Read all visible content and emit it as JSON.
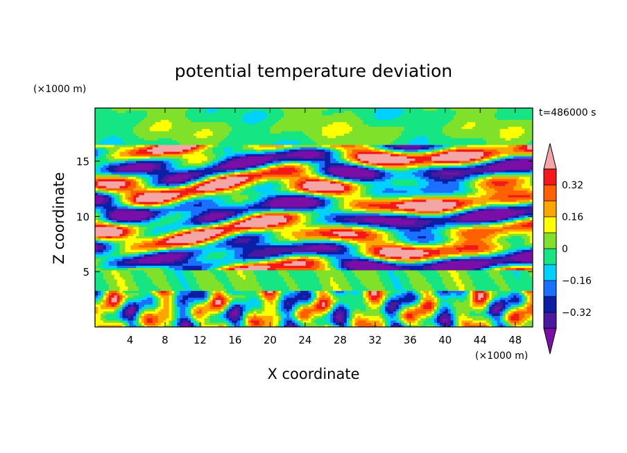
{
  "chart_data": {
    "type": "heatmap",
    "title": "potential temperature deviation",
    "xlabel": "X coordinate",
    "ylabel": "Z coordinate",
    "x_unit": "(×1000 m)",
    "y_unit": "(×1000 m)",
    "time_label": "t=486000 s",
    "xlim": [
      0,
      50
    ],
    "ylim": [
      0,
      19.8
    ],
    "x_ticks": [
      4,
      8,
      12,
      16,
      20,
      24,
      28,
      32,
      36,
      40,
      44,
      48
    ],
    "y_ticks": [
      5,
      10,
      15
    ],
    "colorbar": {
      "levels": [
        -0.4,
        -0.32,
        -0.24,
        -0.16,
        -0.08,
        0,
        0.08,
        0.16,
        0.24,
        0.32,
        0.4
      ],
      "tick_labels": [
        "0.32",
        "0.16",
        "0",
        "−0.16",
        "−0.32"
      ],
      "tick_values": [
        0.32,
        0.16,
        0,
        -0.16,
        -0.32
      ],
      "colors": [
        "#7a0ea6",
        "#4b19a0",
        "#0c1ea5",
        "#1a70ff",
        "#00d2ff",
        "#16e584",
        "#80e12a",
        "#ffff00",
        "#ffa500",
        "#ff6000",
        "#f41818",
        "#f4a6a6"
      ],
      "extend": "both"
    }
  }
}
